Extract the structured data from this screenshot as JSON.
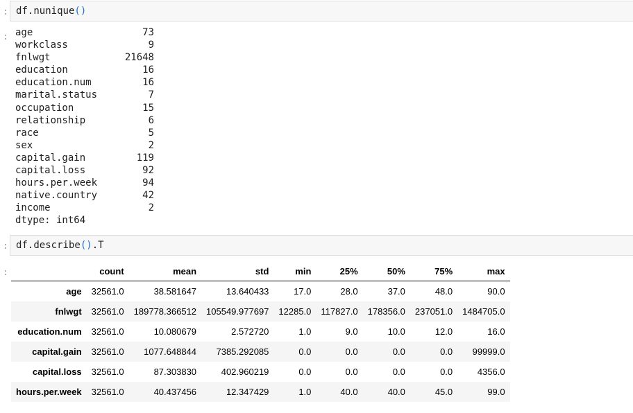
{
  "cell1": {
    "prompt": ":",
    "code": "df.nunique()",
    "output_prompt": ":",
    "series": [
      {
        "name": "age",
        "value": "73"
      },
      {
        "name": "workclass",
        "value": "9"
      },
      {
        "name": "fnlwgt",
        "value": "21648"
      },
      {
        "name": "education",
        "value": "16"
      },
      {
        "name": "education.num",
        "value": "16"
      },
      {
        "name": "marital.status",
        "value": "7"
      },
      {
        "name": "occupation",
        "value": "15"
      },
      {
        "name": "relationship",
        "value": "6"
      },
      {
        "name": "race",
        "value": "5"
      },
      {
        "name": "sex",
        "value": "2"
      },
      {
        "name": "capital.gain",
        "value": "119"
      },
      {
        "name": "capital.loss",
        "value": "92"
      },
      {
        "name": "hours.per.week",
        "value": "94"
      },
      {
        "name": "native.country",
        "value": "42"
      },
      {
        "name": "income",
        "value": "2"
      }
    ],
    "dtype": "dtype: int64"
  },
  "cell2": {
    "prompt": ":",
    "code": "df.describe().T",
    "output_prompt": ":",
    "table": {
      "columns": [
        "count",
        "mean",
        "std",
        "min",
        "25%",
        "50%",
        "75%",
        "max"
      ],
      "rows": [
        {
          "index": "age",
          "values": [
            "32561.0",
            "38.581647",
            "13.640433",
            "17.0",
            "28.0",
            "37.0",
            "48.0",
            "90.0"
          ]
        },
        {
          "index": "fnlwgt",
          "values": [
            "32561.0",
            "189778.366512",
            "105549.977697",
            "12285.0",
            "117827.0",
            "178356.0",
            "237051.0",
            "1484705.0"
          ]
        },
        {
          "index": "education.num",
          "values": [
            "32561.0",
            "10.080679",
            "2.572720",
            "1.0",
            "9.0",
            "10.0",
            "12.0",
            "16.0"
          ]
        },
        {
          "index": "capital.gain",
          "values": [
            "32561.0",
            "1077.648844",
            "7385.292085",
            "0.0",
            "0.0",
            "0.0",
            "0.0",
            "99999.0"
          ]
        },
        {
          "index": "capital.loss",
          "values": [
            "32561.0",
            "87.303830",
            "402.960219",
            "0.0",
            "0.0",
            "0.0",
            "0.0",
            "4356.0"
          ]
        },
        {
          "index": "hours.per.week",
          "values": [
            "32561.0",
            "40.437456",
            "12.347429",
            "1.0",
            "40.0",
            "40.0",
            "45.0",
            "99.0"
          ]
        }
      ]
    }
  }
}
